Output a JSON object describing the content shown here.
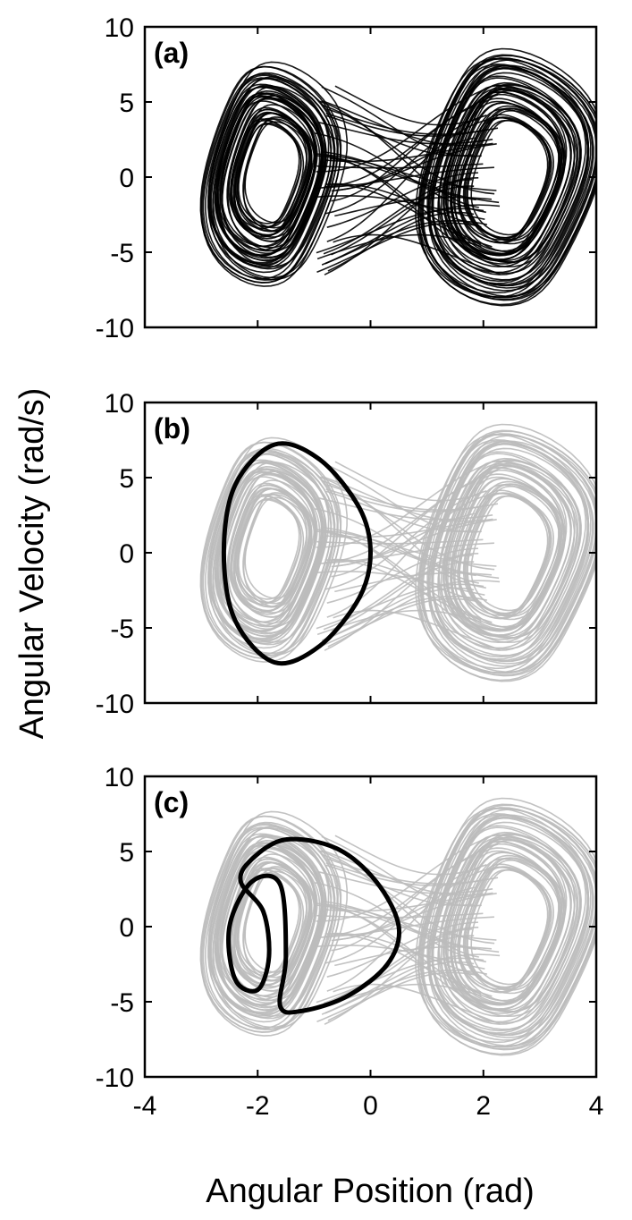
{
  "colors": {
    "attractor_dense": "#000000",
    "attractor_background": "#bbbbbb",
    "orbit": "#000000",
    "axes": "#000000"
  },
  "chart_data": [
    {
      "type": "line",
      "panel_label": "(a)",
      "xlim": [
        -4,
        4
      ],
      "ylim": [
        -10,
        10
      ],
      "x_ticks": [
        "-4",
        "-2",
        "0",
        "2",
        "4"
      ],
      "y_ticks": [
        "10",
        "5",
        "0",
        "-5",
        "-10"
      ],
      "series": [
        {
          "role": "chaotic-attractor",
          "color": "#000000",
          "x_range": [
            -2.7,
            3.8
          ],
          "y_range": [
            -8.2,
            8.8
          ]
        }
      ]
    },
    {
      "type": "line",
      "panel_label": "(b)",
      "xlim": [
        -4,
        4
      ],
      "ylim": [
        -10,
        10
      ],
      "x_ticks": [
        "-4",
        "-2",
        "0",
        "2",
        "4"
      ],
      "y_ticks": [
        "10",
        "5",
        "0",
        "-5",
        "-10"
      ],
      "series": [
        {
          "role": "chaotic-attractor",
          "color": "#bbbbbb",
          "x_range": [
            -2.7,
            3.8
          ],
          "y_range": [
            -8.2,
            8.8
          ]
        },
        {
          "role": "period-1-orbit",
          "color": "#000000",
          "x": [
            -1.7,
            -0.9,
            -0.2,
            0.0,
            -0.2,
            -0.9,
            -1.7,
            -2.4,
            -2.6,
            -2.4
          ],
          "y": [
            7.2,
            6.2,
            3.0,
            0.0,
            -3.0,
            -6.2,
            -7.3,
            -4.5,
            0.0,
            4.5
          ]
        }
      ]
    },
    {
      "type": "line",
      "panel_label": "(c)",
      "xlim": [
        -4,
        4
      ],
      "ylim": [
        -10,
        10
      ],
      "x_ticks": [
        "-4",
        "-2",
        "0",
        "2",
        "4"
      ],
      "y_ticks": [
        "10",
        "5",
        "0",
        "-5",
        "-10"
      ],
      "series": [
        {
          "role": "chaotic-attractor",
          "color": "#bbbbbb",
          "x_range": [
            -2.7,
            3.8
          ],
          "y_range": [
            -8.2,
            8.8
          ]
        },
        {
          "role": "period-2-orbit",
          "color": "#000000",
          "x": [
            -1.5,
            -0.6,
            0.1,
            0.5,
            0.3,
            -0.4,
            -1.2,
            -1.6,
            -1.5,
            -1.6,
            -2.1,
            -2.5,
            -2.4,
            -2.0,
            -1.8,
            -1.9,
            -2.3,
            -2.1
          ],
          "y": [
            5.8,
            5.2,
            3.0,
            0.0,
            -2.5,
            -4.6,
            -5.6,
            -5.3,
            -2.0,
            2.8,
            3.0,
            0.0,
            -3.5,
            -4.2,
            -2.0,
            1.0,
            3.0,
            4.5
          ]
        }
      ]
    }
  ],
  "x_axis_label": "Angular Position (rad)",
  "y_axis_label": "Angular Velocity (rad/s)"
}
